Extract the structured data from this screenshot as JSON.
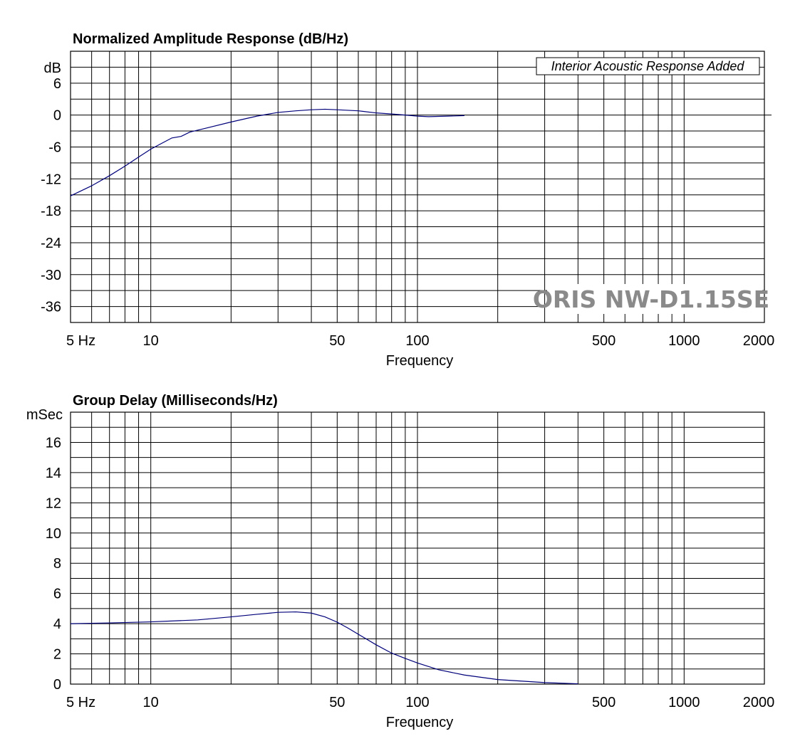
{
  "chart_data": [
    {
      "type": "line",
      "title": "Normalized Amplitude Response (dB/Hz)",
      "xlabel": "Frequency",
      "ylabel": "dB",
      "xscale": "log",
      "xlim": [
        5,
        2000
      ],
      "ylim": [
        -39,
        12
      ],
      "ytick_values": [
        6,
        0,
        -6,
        -12,
        -18,
        -24,
        -30,
        -36
      ],
      "ytick_labels": [
        "6",
        "0",
        "-6",
        "-12",
        "-18",
        "-24",
        "-30",
        "-36"
      ],
      "xtick_values": [
        5,
        10,
        50,
        100,
        500,
        1000,
        2000
      ],
      "xtick_labels": [
        "5  Hz",
        "10",
        "50",
        "100",
        "500",
        "1000",
        "2000"
      ],
      "grid": true,
      "line_color": "#00007a",
      "annotation": "Interior Acoustic Response Added",
      "watermark": "ORIS NW-D1.15SE",
      "series": [
        {
          "x": [
            5,
            6,
            7,
            8,
            9,
            10,
            11,
            12,
            13,
            14,
            16,
            20,
            25,
            30,
            35,
            40,
            45,
            50,
            60,
            70,
            80,
            90,
            100,
            110,
            130,
            150
          ],
          "y": [
            -15.2,
            -13.3,
            -11.4,
            -9.6,
            -7.9,
            -6.4,
            -5.3,
            -4.3,
            -4.0,
            -3.2,
            -2.5,
            -1.3,
            -0.2,
            0.5,
            0.8,
            1.0,
            1.1,
            1.0,
            0.8,
            0.4,
            0.2,
            0.0,
            -0.2,
            -0.3,
            -0.2,
            -0.1
          ]
        }
      ]
    },
    {
      "type": "line",
      "title": "Group Delay (Milliseconds/Hz)",
      "xlabel": "Frequency",
      "ylabel": "mSec",
      "xscale": "log",
      "xlim": [
        5,
        2000
      ],
      "ylim": [
        0,
        18
      ],
      "ytick_values": [
        16,
        14,
        12,
        10,
        8,
        6,
        4,
        2,
        0
      ],
      "ytick_labels": [
        "16",
        "14",
        "12",
        "10",
        "8",
        "6",
        "4",
        "2",
        "0"
      ],
      "xtick_values": [
        5,
        10,
        50,
        100,
        500,
        1000,
        2000
      ],
      "xtick_labels": [
        "5  Hz",
        "10",
        "50",
        "100",
        "500",
        "1000",
        "2000"
      ],
      "grid": true,
      "line_color": "#00007a",
      "series": [
        {
          "x": [
            5,
            7,
            10,
            15,
            20,
            25,
            30,
            35,
            40,
            45,
            50,
            55,
            60,
            70,
            80,
            90,
            100,
            120,
            150,
            200,
            300,
            400
          ],
          "y": [
            4.0,
            4.05,
            4.12,
            4.25,
            4.45,
            4.62,
            4.75,
            4.78,
            4.7,
            4.45,
            4.1,
            3.7,
            3.3,
            2.6,
            2.05,
            1.7,
            1.4,
            0.95,
            0.6,
            0.3,
            0.1,
            0.02
          ]
        }
      ]
    }
  ]
}
